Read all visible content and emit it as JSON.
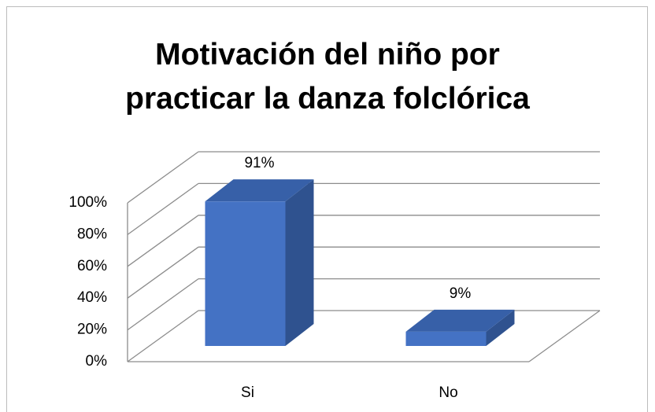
{
  "chart_data": {
    "type": "bar3d",
    "title": "Motivación del niño por practicar la danza folclórica",
    "categories": [
      "Si",
      "No"
    ],
    "values": [
      91,
      9
    ],
    "value_labels": [
      "91%",
      "9%"
    ],
    "color": "#4472c4",
    "ylim": [
      0,
      100
    ],
    "yticks": [
      {
        "value": 0,
        "label": "0%"
      },
      {
        "value": 20,
        "label": "20%"
      },
      {
        "value": 40,
        "label": "40%"
      },
      {
        "value": 60,
        "label": "60%"
      },
      {
        "value": 80,
        "label": "80%"
      },
      {
        "value": 100,
        "label": "100%"
      }
    ],
    "grid": true
  }
}
